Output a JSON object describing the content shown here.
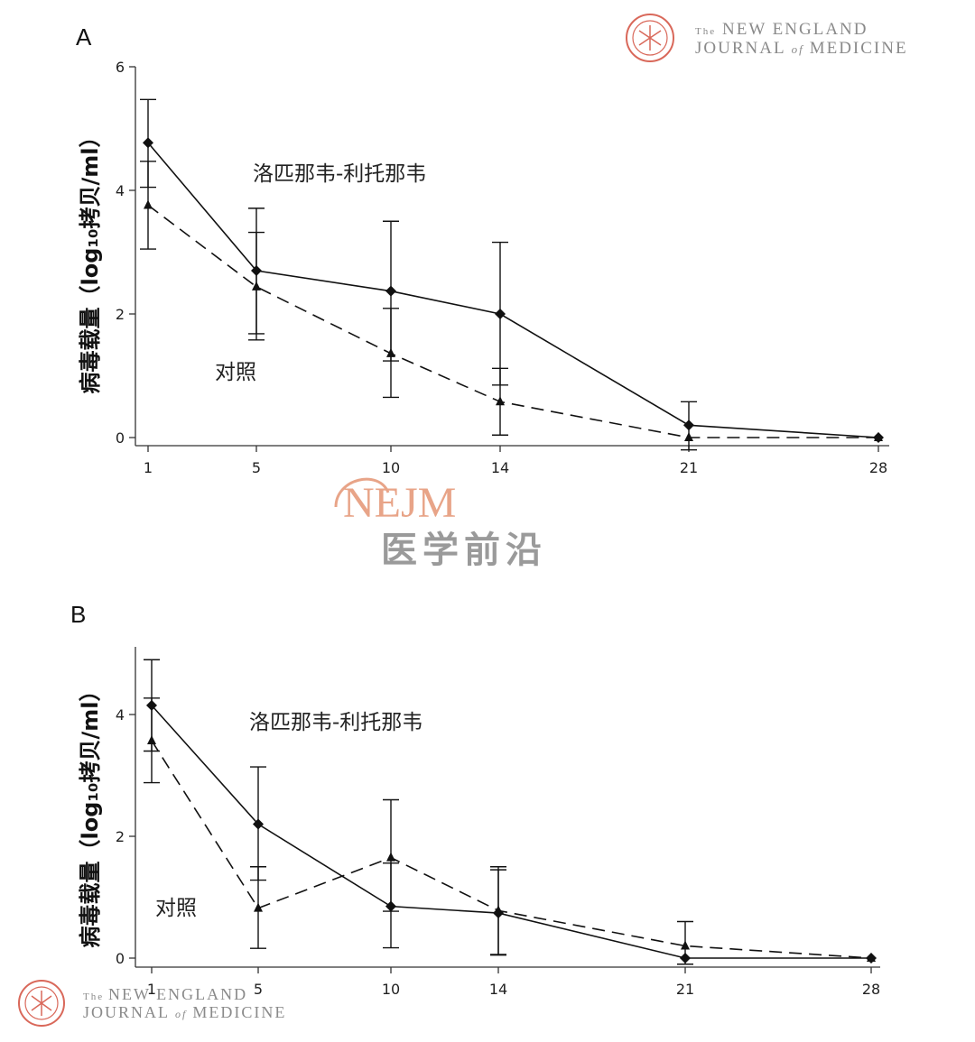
{
  "logo": {
    "line1_prefix": "The",
    "line1": "NEW ENGLAND",
    "line2_a": "JOURNAL",
    "line2_of": "of",
    "line2_b": "MEDICINE",
    "seal_color": "#d9685a"
  },
  "watermark": {
    "brand": "NEJM",
    "subtitle": "医学前沿",
    "brand_color": "#e8a488",
    "subtitle_color": "#9a9a9a"
  },
  "chart_data": [
    {
      "panel": "A",
      "type": "line",
      "ylabel": "病毒载量（log₁₀拷贝/ml）",
      "xlabel": "",
      "x": [
        1,
        5,
        10,
        14,
        21,
        28
      ],
      "x_ticks": [
        "1",
        "5",
        "10",
        "14",
        "21",
        "28"
      ],
      "y_ticks": [
        "0",
        "2",
        "4",
        "6"
      ],
      "ylim": [
        0,
        6
      ],
      "grid": false,
      "series": [
        {
          "name": "洛匹那韦-利托那韦",
          "style": "solid",
          "marker": "diamond",
          "points": [
            {
              "x": 1,
              "y": 4.77,
              "lo": 4.05,
              "hi": 5.47
            },
            {
              "x": 5,
              "y": 2.7,
              "lo": 1.68,
              "hi": 3.71
            },
            {
              "x": 10,
              "y": 2.37,
              "lo": 1.24,
              "hi": 3.5
            },
            {
              "x": 14,
              "y": 2.0,
              "lo": 0.85,
              "hi": 3.16
            },
            {
              "x": 21,
              "y": 0.2,
              "lo": -0.2,
              "hi": 0.58
            },
            {
              "x": 28,
              "y": 0.0,
              "lo": 0.0,
              "hi": 0.0
            }
          ]
        },
        {
          "name": "对照",
          "style": "dashed",
          "marker": "triangle",
          "points": [
            {
              "x": 1,
              "y": 3.76,
              "lo": 3.05,
              "hi": 4.47
            },
            {
              "x": 5,
              "y": 2.44,
              "lo": 1.58,
              "hi": 3.32
            },
            {
              "x": 10,
              "y": 1.36,
              "lo": 0.65,
              "hi": 2.09
            },
            {
              "x": 14,
              "y": 0.58,
              "lo": 0.04,
              "hi": 1.12
            },
            {
              "x": 21,
              "y": 0.0,
              "lo": 0.0,
              "hi": 0.0
            },
            {
              "x": 28,
              "y": 0.0,
              "lo": 0.0,
              "hi": 0.0
            }
          ]
        }
      ]
    },
    {
      "panel": "B",
      "type": "line",
      "ylabel": "病毒载量（log₁₀拷贝/ml）",
      "xlabel": "",
      "x": [
        1,
        5,
        10,
        14,
        21,
        28
      ],
      "x_ticks": [
        "1",
        "5",
        "10",
        "14",
        "21",
        "28"
      ],
      "y_ticks": [
        "0",
        "2",
        "4"
      ],
      "ylim": [
        0,
        5
      ],
      "grid": false,
      "series": [
        {
          "name": "洛匹那韦-利托那韦",
          "style": "solid",
          "marker": "diamond",
          "points": [
            {
              "x": 1,
              "y": 4.15,
              "lo": 3.4,
              "hi": 4.9
            },
            {
              "x": 5,
              "y": 2.2,
              "lo": 1.28,
              "hi": 3.14
            },
            {
              "x": 10,
              "y": 0.85,
              "lo": 0.17,
              "hi": 2.6
            },
            {
              "x": 14,
              "y": 0.74,
              "lo": 0.05,
              "hi": 1.45
            },
            {
              "x": 21,
              "y": 0.0,
              "lo": 0.0,
              "hi": 0.0
            },
            {
              "x": 28,
              "y": 0.0,
              "lo": 0.0,
              "hi": 0.0
            }
          ]
        },
        {
          "name": "对照",
          "style": "dashed",
          "marker": "triangle",
          "points": [
            {
              "x": 1,
              "y": 3.57,
              "lo": 2.88,
              "hi": 4.27
            },
            {
              "x": 5,
              "y": 0.82,
              "lo": 0.16,
              "hi": 1.5
            },
            {
              "x": 10,
              "y": 1.65,
              "lo": 0.77,
              "hi": 1.56
            },
            {
              "x": 14,
              "y": 0.78,
              "lo": 0.06,
              "hi": 1.5
            },
            {
              "x": 21,
              "y": 0.2,
              "lo": -0.1,
              "hi": 0.6
            },
            {
              "x": 28,
              "y": 0.0,
              "lo": 0.0,
              "hi": 0.0
            }
          ]
        }
      ]
    }
  ]
}
